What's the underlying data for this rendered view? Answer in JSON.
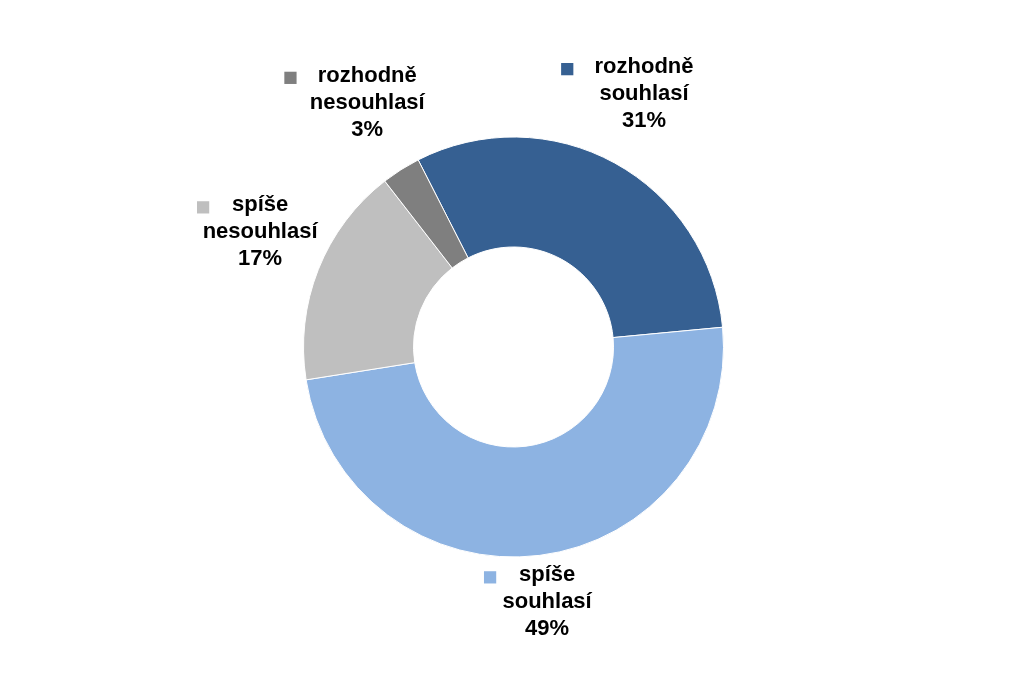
{
  "chart_data": {
    "type": "donut",
    "categories": [
      "rozhodně souhlasí",
      "spíše souhlasí",
      "spíše nesouhlasí",
      "rozhodně nesouhlasí"
    ],
    "values": [
      31,
      49,
      17,
      3
    ],
    "value_labels": [
      "31%",
      "49%",
      "17%",
      "3%"
    ],
    "colors": [
      "#366092",
      "#8db3e2",
      "#bfbfbf",
      "#7f7f7f"
    ],
    "legend": "left"
  }
}
